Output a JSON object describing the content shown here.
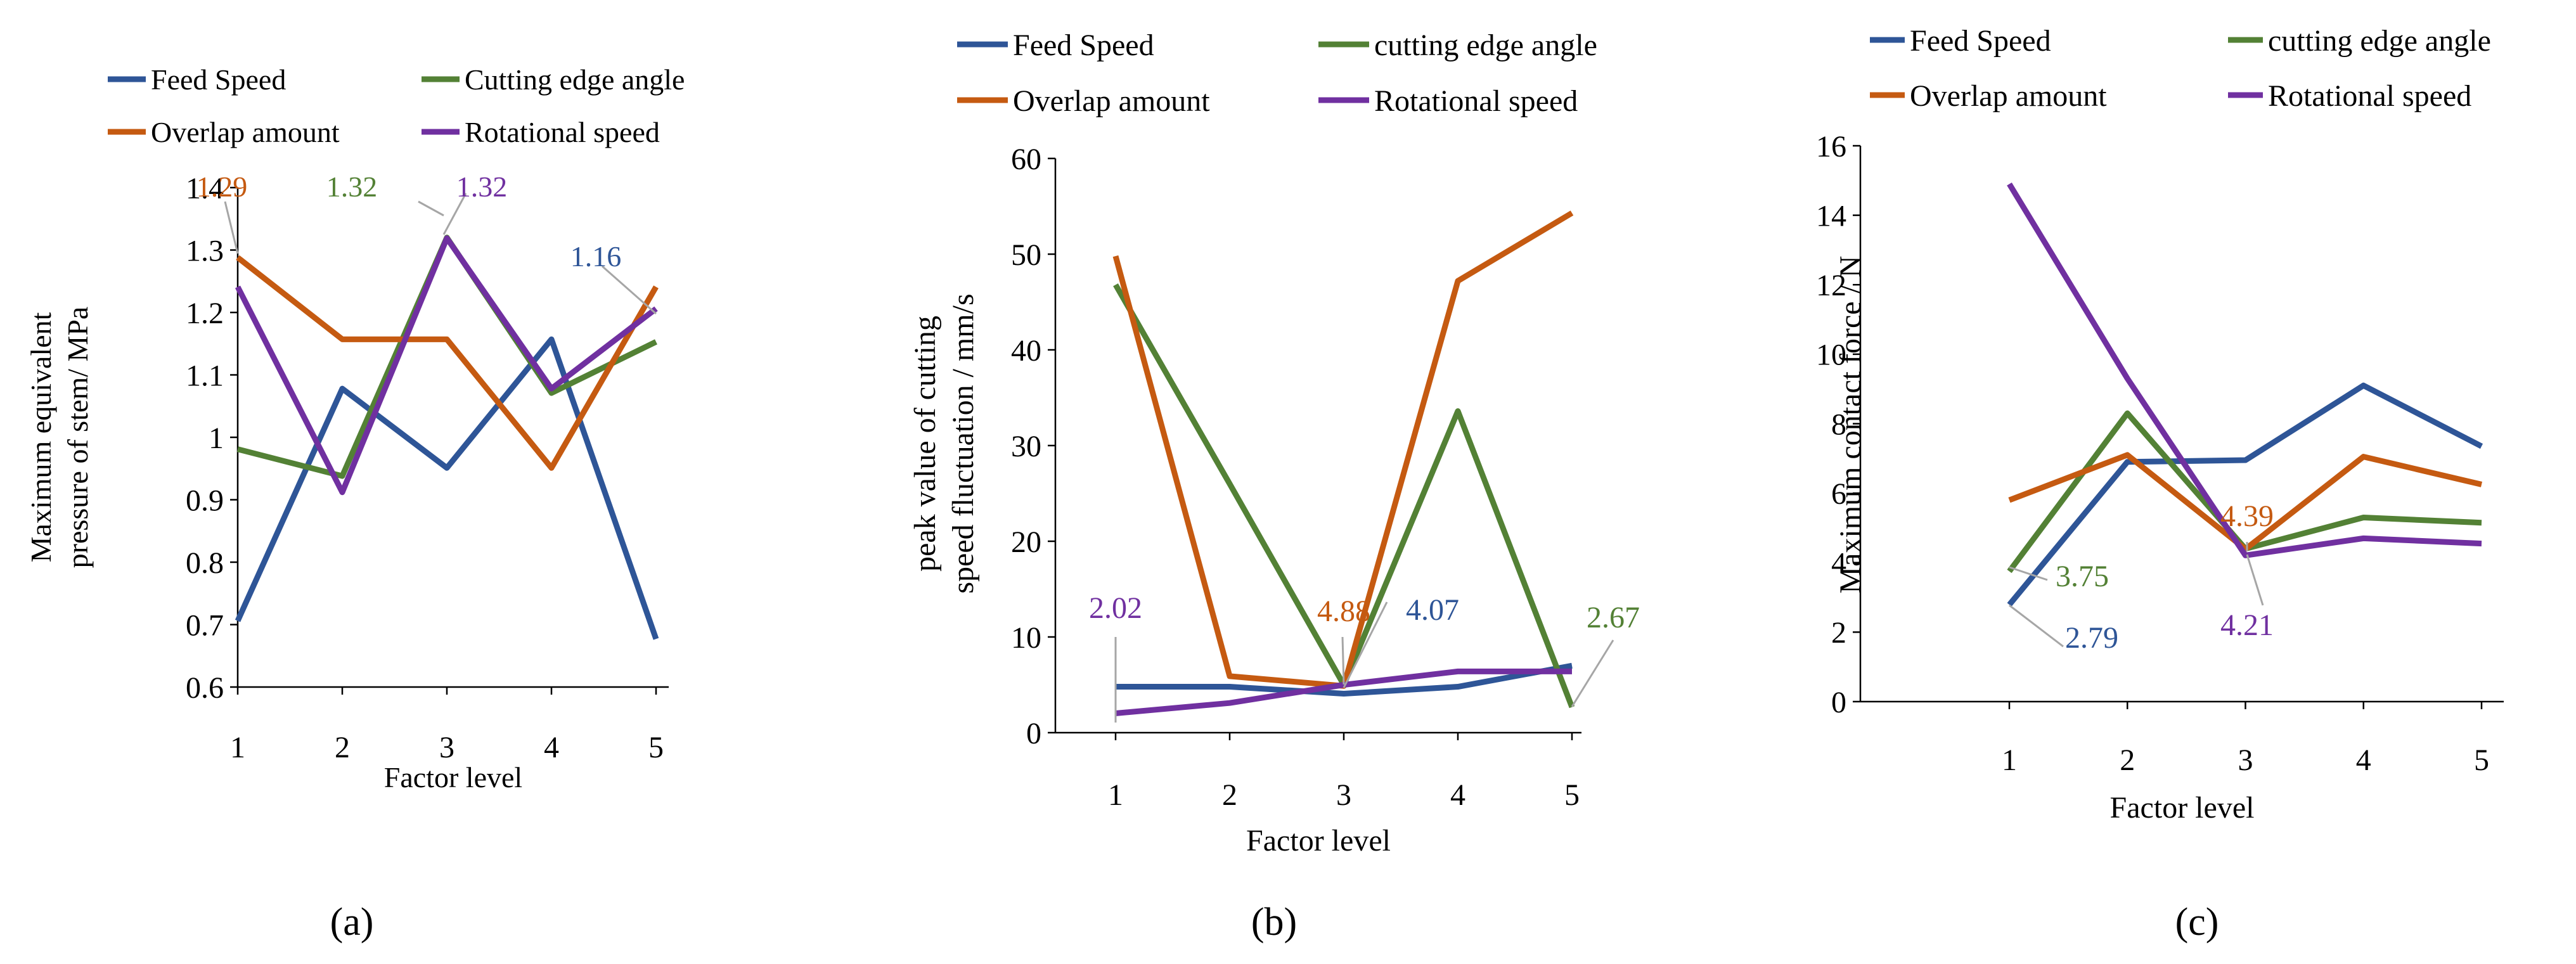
{
  "colors": {
    "feed": "#2E5597",
    "edge": "#538135",
    "overlap": "#C55A11",
    "rot": "#7030A0",
    "axis": "#000000",
    "leader": "#A6A6A6"
  },
  "chart_data": [
    {
      "id": "a",
      "type": "line",
      "panel_label": "(a)",
      "xlabel": "Factor level",
      "ylabel_lines": [
        "Maximum equivalent",
        "pressure of stem/ MPa"
      ],
      "x": [
        1,
        2,
        3,
        4,
        5
      ],
      "x_tick_labels": [
        "1",
        "2",
        "3",
        "4",
        "5"
      ],
      "ylim": [
        0.6,
        1.4
      ],
      "y_tick_labels": [
        "0.6",
        "0.7",
        "0.8",
        "0.9",
        "1",
        "1.1",
        "1.2",
        "1.3",
        "1.4"
      ],
      "legend": [
        "Feed Speed",
        "Cutting edge angle",
        "Overlap amount",
        "Rotational speed"
      ],
      "series": [
        {
          "name": "Feed Speed",
          "color_key": "feed",
          "values": [
            0.706,
            1.078,
            0.951,
            1.157,
            0.677
          ]
        },
        {
          "name": "Cutting edge angle",
          "color_key": "edge",
          "values": [
            0.981,
            0.938,
            1.32,
            1.071,
            1.153
          ]
        },
        {
          "name": "Overlap amount",
          "color_key": "overlap",
          "values": [
            1.288,
            1.157,
            1.157,
            0.951,
            1.241
          ]
        },
        {
          "name": "Rotational speed",
          "color_key": "rot",
          "values": [
            1.241,
            0.912,
            1.319,
            1.078,
            1.206
          ]
        }
      ],
      "annotations": [
        {
          "text": "1.29",
          "color_key": "overlap"
        },
        {
          "text": "1.32",
          "color_key": "edge"
        },
        {
          "text": "1.32",
          "color_key": "rot"
        },
        {
          "text": "1.16",
          "color_key": "feed"
        }
      ]
    },
    {
      "id": "b",
      "type": "line",
      "panel_label": "(b)",
      "xlabel": "Factor level",
      "ylabel_lines": [
        "peak value of cutting",
        "speed fluctuation / mm/s"
      ],
      "x": [
        1,
        2,
        3,
        4,
        5
      ],
      "x_tick_labels": [
        "1",
        "2",
        "3",
        "4",
        "5"
      ],
      "ylim": [
        0,
        60
      ],
      "y_tick_labels": [
        "0",
        "10",
        "20",
        "30",
        "40",
        "50",
        "60"
      ],
      "legend": [
        "Feed Speed",
        "cutting edge angle",
        "Overlap amount",
        "Rotational speed"
      ],
      "series": [
        {
          "name": "Feed Speed",
          "color_key": "feed",
          "values": [
            4.8,
            4.8,
            4.07,
            4.8,
            7.0
          ]
        },
        {
          "name": "cutting edge angle",
          "color_key": "edge",
          "values": [
            46.8,
            26.0,
            5.0,
            33.6,
            2.67
          ]
        },
        {
          "name": "Overlap amount",
          "color_key": "overlap",
          "values": [
            49.8,
            5.9,
            4.88,
            47.2,
            54.3
          ]
        },
        {
          "name": "Rotational speed",
          "color_key": "rot",
          "values": [
            2.02,
            3.1,
            5.0,
            6.4,
            6.4
          ]
        }
      ],
      "annotations": [
        {
          "text": "2.02",
          "color_key": "rot"
        },
        {
          "text": "4.88",
          "color_key": "overlap"
        },
        {
          "text": "4.07",
          "color_key": "feed"
        },
        {
          "text": "2.67",
          "color_key": "edge"
        }
      ]
    },
    {
      "id": "c",
      "type": "line",
      "panel_label": "(c)",
      "xlabel": "Factor level",
      "ylabel_lines": [
        "Maximum contact force / N"
      ],
      "x": [
        1,
        2,
        3,
        4,
        5
      ],
      "x_tick_labels": [
        "1",
        "2",
        "3",
        "4",
        "5"
      ],
      "ylim": [
        0,
        16
      ],
      "y_tick_labels": [
        "0",
        "2",
        "4",
        "6",
        "8",
        "10",
        "12",
        "14",
        "16"
      ],
      "legend": [
        "Feed Speed",
        "cutting edge angle",
        "Overlap amount",
        "Rotational speed"
      ],
      "series": [
        {
          "name": "Feed Speed",
          "color_key": "feed",
          "values": [
            2.79,
            6.9,
            6.95,
            9.1,
            7.35
          ]
        },
        {
          "name": "cutting edge angle",
          "color_key": "edge",
          "values": [
            3.75,
            8.3,
            4.4,
            5.3,
            5.15
          ]
        },
        {
          "name": "Overlap amount",
          "color_key": "overlap",
          "values": [
            5.8,
            7.1,
            4.39,
            7.05,
            6.25
          ]
        },
        {
          "name": "Rotational speed",
          "color_key": "rot",
          "values": [
            14.9,
            9.3,
            4.21,
            4.7,
            4.55
          ]
        }
      ],
      "annotations": [
        {
          "text": "3.75",
          "color_key": "edge"
        },
        {
          "text": "2.79",
          "color_key": "feed"
        },
        {
          "text": "4.39",
          "color_key": "overlap"
        },
        {
          "text": "4.21",
          "color_key": "rot"
        }
      ]
    }
  ]
}
